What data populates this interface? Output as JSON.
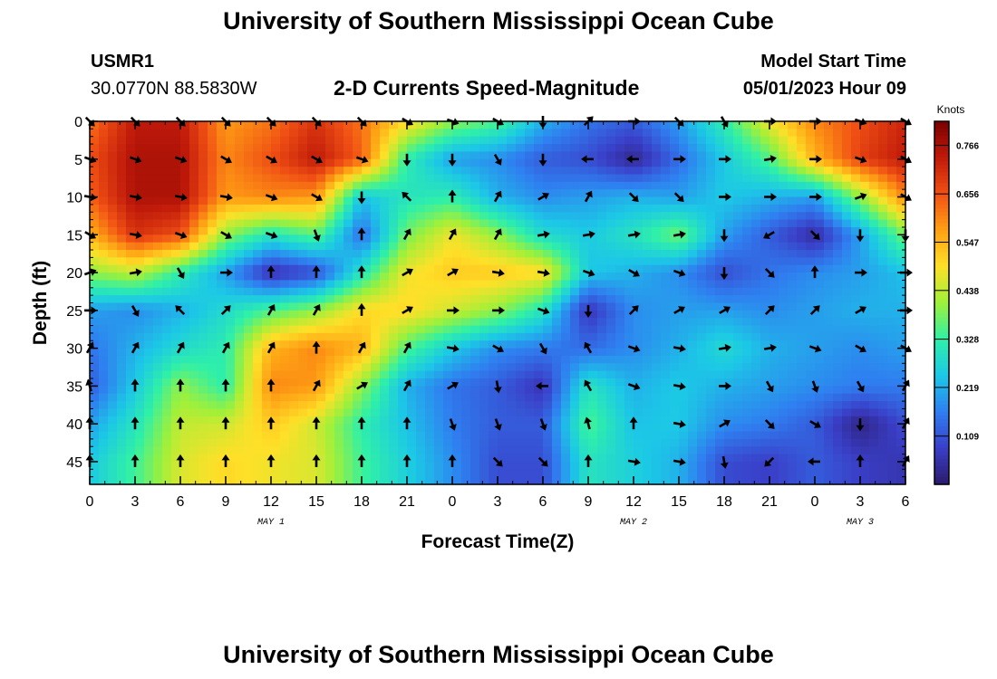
{
  "header": {
    "title": "University of Southern Mississippi Ocean Cube",
    "station_id": "USMR1",
    "station_coords": "30.0770N  88.5830W",
    "plot_subtitle": "2-D Currents Speed-Magnitude",
    "model_start_label": "Model Start Time",
    "model_start_value": "05/01/2023 Hour 09",
    "footer_title": "University of Southern Mississippi Ocean Cube"
  },
  "chart_data": {
    "type": "heatmap",
    "title": "2-D Currents Speed-Magnitude",
    "xlabel": "Forecast Time(Z)",
    "ylabel": "Depth (ft)",
    "x_tick_labels": [
      "0",
      "3",
      "6",
      "9",
      "12",
      "15",
      "18",
      "21",
      "0",
      "3",
      "6",
      "9",
      "12",
      "15",
      "18",
      "21",
      "0",
      "3",
      "6"
    ],
    "date_labels": [
      {
        "label": "MAY 1",
        "at_tick": 4
      },
      {
        "label": "MAY 2",
        "at_tick": 12
      },
      {
        "label": "MAY 3",
        "at_tick": 17
      }
    ],
    "y_tick_labels": [
      "0",
      "5",
      "10",
      "15",
      "20",
      "25",
      "30",
      "35",
      "40",
      "45"
    ],
    "ylim": [
      0,
      48
    ],
    "xlim_hours": [
      0,
      54
    ],
    "colorbar": {
      "label": "Knots",
      "ticks": [
        "0.766",
        "0.656",
        "0.547",
        "0.438",
        "0.328",
        "0.219",
        "0.109"
      ],
      "range": [
        0,
        0.82
      ],
      "colors": [
        "#2c1b6b",
        "#3a3fc8",
        "#2f7ff0",
        "#1cc8e6",
        "#2ff0a8",
        "#9ef03a",
        "#ffe028",
        "#ffa014",
        "#f05014",
        "#c01a0a",
        "#7a0000"
      ]
    },
    "depth_rows": [
      0,
      5,
      10,
      15,
      20,
      25,
      30,
      35,
      40,
      45
    ],
    "hour_columns": [
      0,
      3,
      6,
      9,
      12,
      15,
      18,
      21,
      24,
      27,
      30,
      33,
      36,
      39,
      42,
      45,
      48,
      51,
      54
    ],
    "speed_knots": [
      [
        0.62,
        0.74,
        0.74,
        0.58,
        0.62,
        0.7,
        0.62,
        0.5,
        0.4,
        0.35,
        0.22,
        0.15,
        0.12,
        0.2,
        0.32,
        0.48,
        0.6,
        0.66,
        0.72
      ],
      [
        0.66,
        0.76,
        0.76,
        0.6,
        0.66,
        0.74,
        0.64,
        0.32,
        0.2,
        0.18,
        0.12,
        0.1,
        0.03,
        0.14,
        0.25,
        0.35,
        0.55,
        0.68,
        0.74
      ],
      [
        0.64,
        0.76,
        0.76,
        0.58,
        0.6,
        0.58,
        0.24,
        0.3,
        0.32,
        0.22,
        0.18,
        0.2,
        0.22,
        0.2,
        0.25,
        0.22,
        0.2,
        0.4,
        0.6
      ],
      [
        0.55,
        0.7,
        0.66,
        0.4,
        0.3,
        0.36,
        0.14,
        0.38,
        0.48,
        0.4,
        0.28,
        0.25,
        0.3,
        0.38,
        0.2,
        0.12,
        0.04,
        0.2,
        0.38
      ],
      [
        0.4,
        0.44,
        0.32,
        0.2,
        0.05,
        0.1,
        0.3,
        0.48,
        0.52,
        0.52,
        0.5,
        0.25,
        0.22,
        0.18,
        0.1,
        0.15,
        0.18,
        0.2,
        0.24
      ],
      [
        0.2,
        0.18,
        0.22,
        0.28,
        0.35,
        0.4,
        0.5,
        0.5,
        0.45,
        0.4,
        0.3,
        0.06,
        0.18,
        0.2,
        0.2,
        0.18,
        0.2,
        0.22,
        0.22
      ],
      [
        0.15,
        0.22,
        0.28,
        0.32,
        0.55,
        0.6,
        0.55,
        0.35,
        0.25,
        0.18,
        0.16,
        0.14,
        0.18,
        0.22,
        0.28,
        0.22,
        0.2,
        0.18,
        0.2
      ],
      [
        0.12,
        0.25,
        0.4,
        0.32,
        0.6,
        0.58,
        0.4,
        0.22,
        0.15,
        0.12,
        0.06,
        0.3,
        0.22,
        0.25,
        0.22,
        0.2,
        0.18,
        0.16,
        0.16
      ],
      [
        0.2,
        0.3,
        0.44,
        0.45,
        0.52,
        0.45,
        0.32,
        0.24,
        0.16,
        0.12,
        0.12,
        0.35,
        0.24,
        0.25,
        0.18,
        0.16,
        0.12,
        0.02,
        0.1
      ],
      [
        0.25,
        0.34,
        0.46,
        0.5,
        0.48,
        0.46,
        0.34,
        0.26,
        0.18,
        0.1,
        0.1,
        0.3,
        0.26,
        0.22,
        0.1,
        0.08,
        0.12,
        0.08,
        0.06
      ]
    ],
    "direction_deg": [
      [
        135,
        135,
        135,
        135,
        135,
        135,
        135,
        120,
        110,
        120,
        180,
        45,
        90,
        135,
        150,
        90,
        90,
        110,
        120
      ],
      [
        110,
        110,
        110,
        120,
        120,
        120,
        110,
        180,
        180,
        150,
        180,
        270,
        270,
        90,
        90,
        80,
        90,
        110,
        120
      ],
      [
        100,
        100,
        100,
        100,
        110,
        120,
        180,
        315,
        0,
        30,
        60,
        30,
        135,
        135,
        90,
        90,
        90,
        70,
        120
      ],
      [
        120,
        100,
        110,
        120,
        110,
        160,
        0,
        30,
        30,
        30,
        80,
        80,
        80,
        80,
        180,
        240,
        135,
        180,
        180
      ],
      [
        70,
        80,
        150,
        90,
        0,
        0,
        0,
        60,
        60,
        100,
        100,
        110,
        120,
        110,
        180,
        135,
        0,
        90,
        90
      ],
      [
        90,
        150,
        315,
        45,
        30,
        30,
        0,
        60,
        90,
        90,
        110,
        180,
        45,
        60,
        60,
        45,
        45,
        60,
        90
      ],
      [
        30,
        30,
        30,
        30,
        30,
        0,
        30,
        30,
        100,
        120,
        150,
        330,
        110,
        100,
        80,
        80,
        110,
        120,
        120
      ],
      [
        345,
        0,
        0,
        0,
        0,
        30,
        60,
        30,
        60,
        170,
        270,
        330,
        110,
        100,
        90,
        150,
        160,
        150,
        30
      ],
      [
        0,
        0,
        0,
        0,
        0,
        0,
        0,
        0,
        160,
        160,
        160,
        345,
        0,
        100,
        60,
        135,
        120,
        180,
        30
      ],
      [
        0,
        0,
        0,
        0,
        0,
        0,
        0,
        0,
        0,
        135,
        135,
        0,
        100,
        100,
        170,
        225,
        270,
        0,
        30
      ]
    ]
  }
}
